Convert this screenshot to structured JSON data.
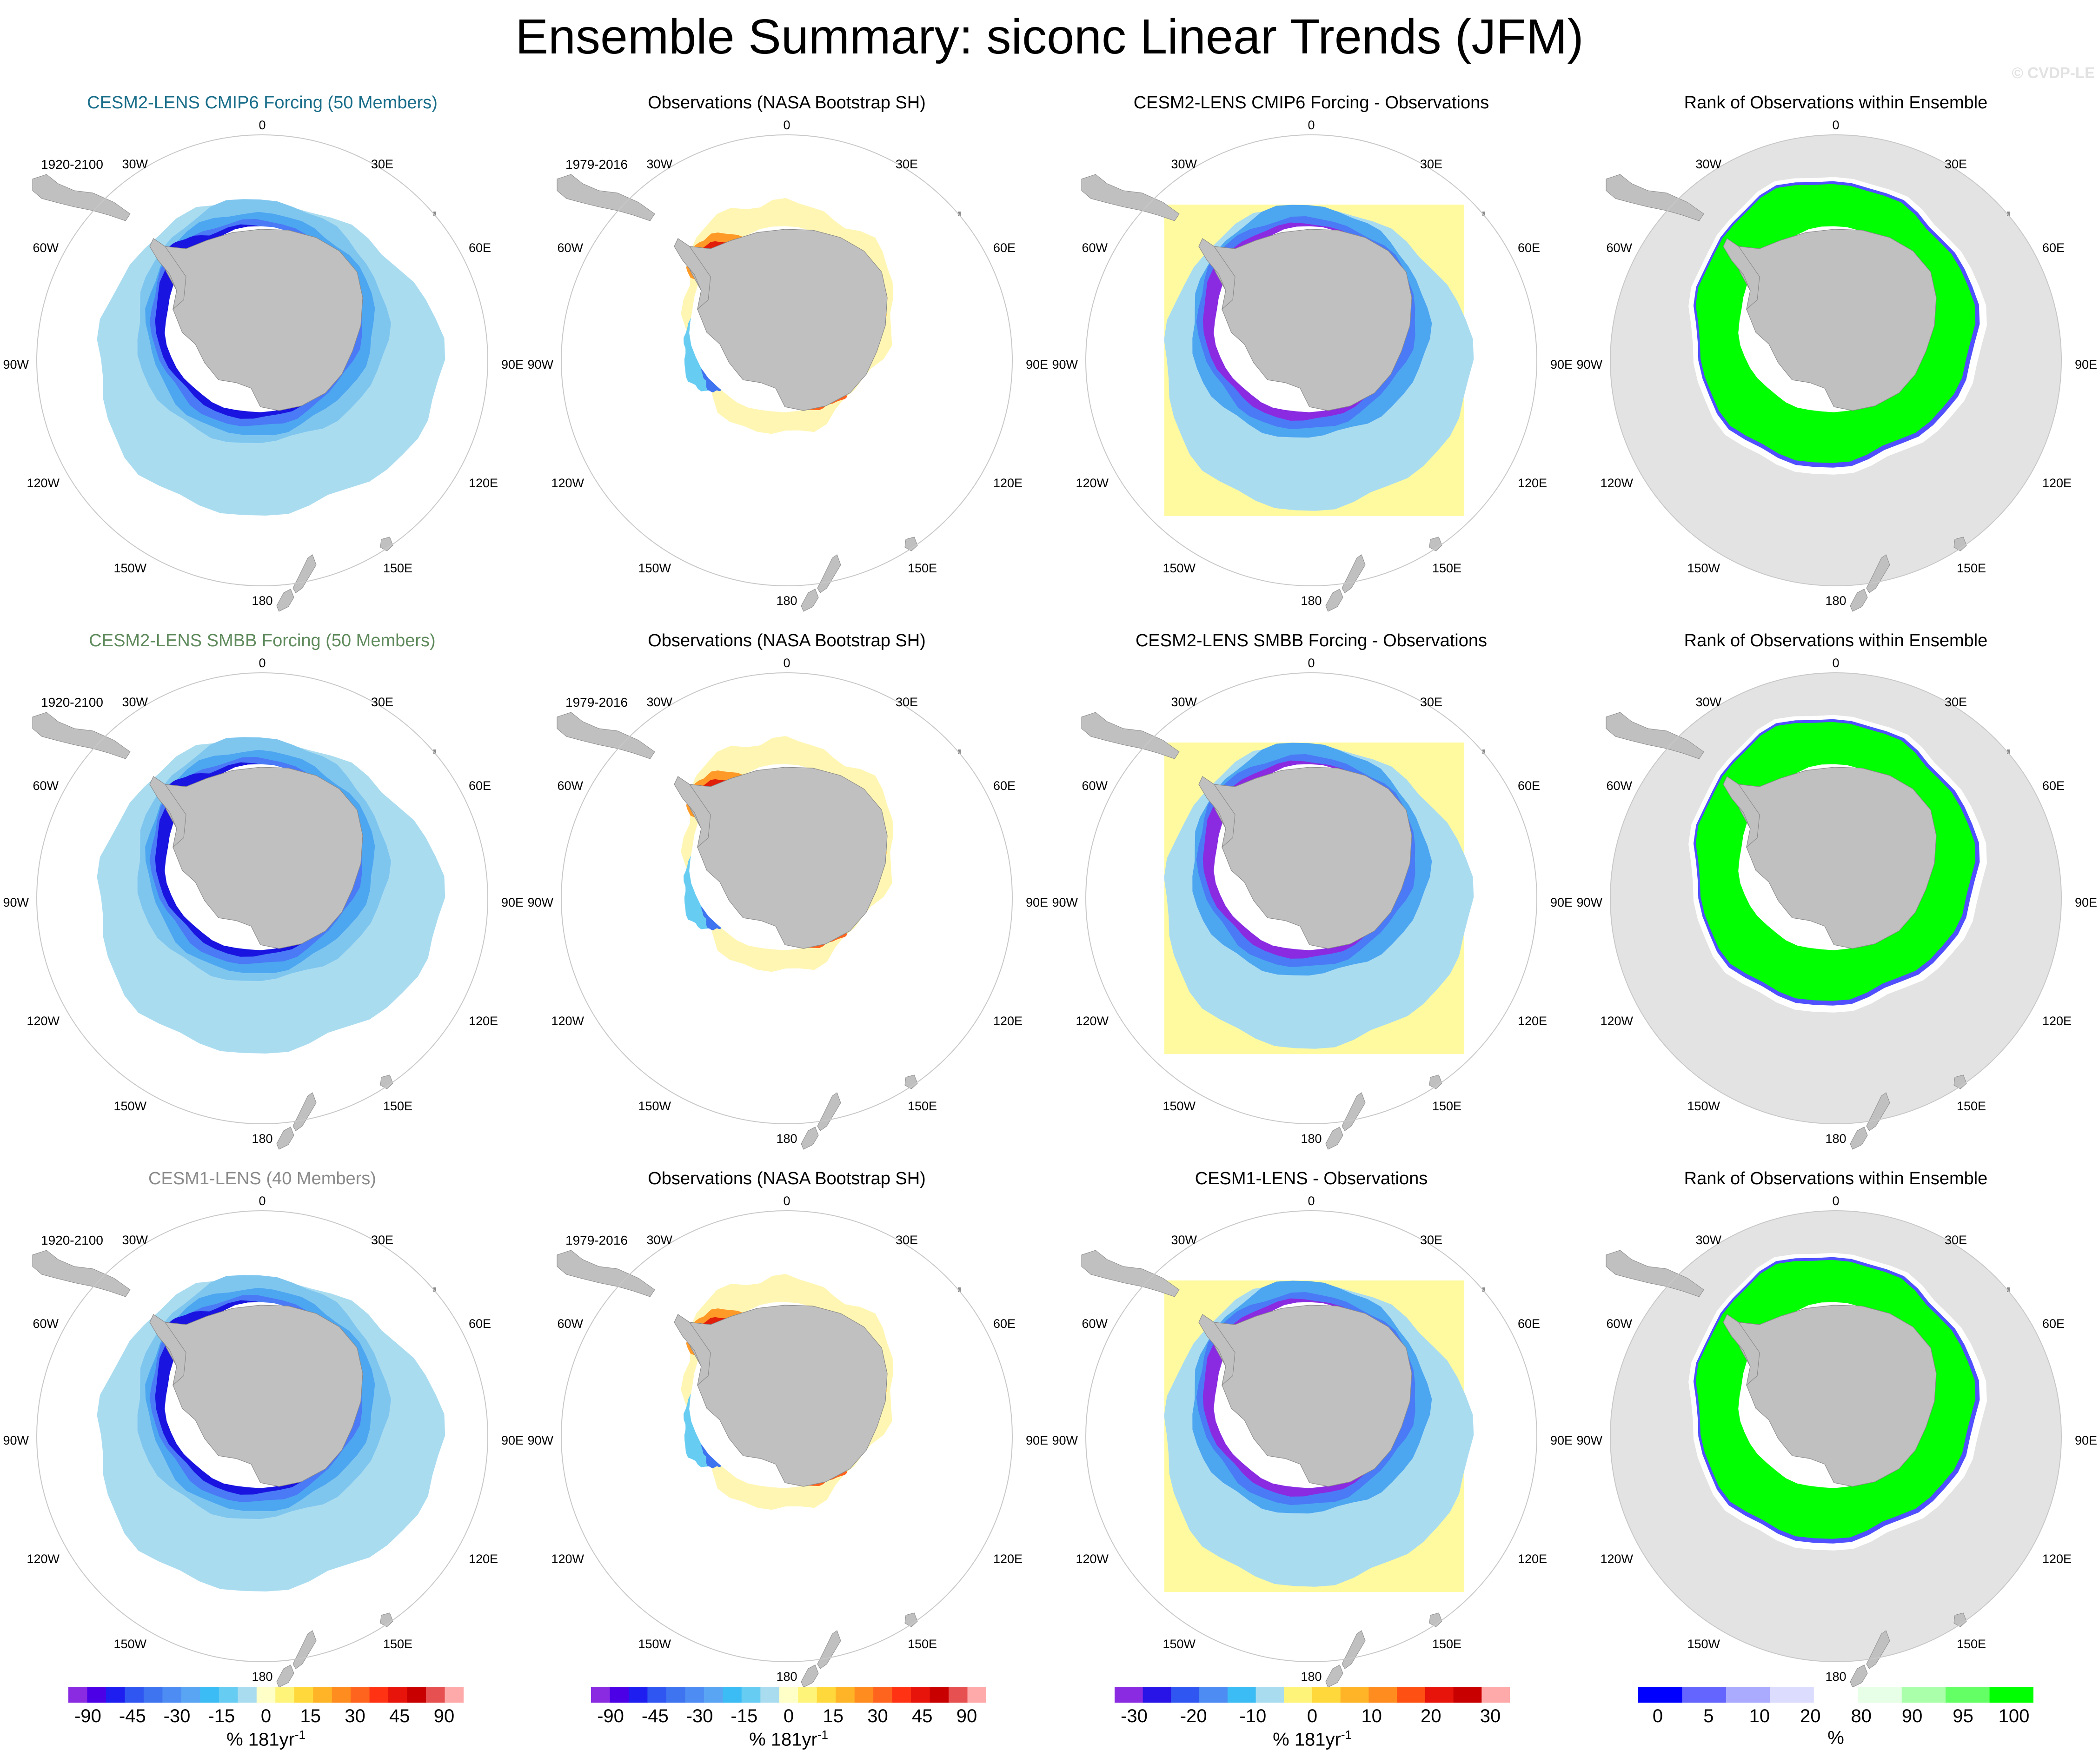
{
  "figure": {
    "title": "Ensemble Summary: siconc Linear Trends (JFM)",
    "watermark": "© CVDP-LE"
  },
  "map_labels": {
    "lon_labels": [
      "0",
      "30E",
      "60E",
      "90E",
      "120E",
      "150E",
      "180",
      "150W",
      "120W",
      "90W",
      "60W",
      "30W"
    ]
  },
  "colors": {
    "land": "#c0c0c0",
    "circle": "#c8c8c8",
    "ocean_background_rank": "#e3e3e3",
    "rank_green": "#00ff00",
    "diff_yellow": "#fffaa0",
    "decline_light": "#aadcf0",
    "decline_mid": "#4a7af5",
    "decline_strong": "#1a14e0",
    "decline_max": "#8a2be2"
  },
  "rows": [
    {
      "model": {
        "title": "CESM2-LENS CMIP6 Forcing (50 Members)",
        "period": "1920-2100"
      },
      "obs": {
        "title": "Observations (NASA Bootstrap SH)",
        "period": "1979-2016"
      },
      "diff": {
        "title": "CESM2-LENS CMIP6 Forcing - Observations"
      },
      "rank": {
        "title": "Rank of Observations within Ensemble"
      }
    },
    {
      "model": {
        "title": "CESM2-LENS SMBB Forcing (50 Members)",
        "period": "1920-2100"
      },
      "obs": {
        "title": "Observations (NASA Bootstrap SH)",
        "period": "1979-2016"
      },
      "diff": {
        "title": "CESM2-LENS SMBB Forcing - Observations"
      },
      "rank": {
        "title": "Rank of Observations within Ensemble"
      }
    },
    {
      "model": {
        "title": "CESM1-LENS (40 Members)",
        "period": "1920-2100"
      },
      "obs": {
        "title": "Observations (NASA Bootstrap SH)",
        "period": "1979-2016"
      },
      "diff": {
        "title": "CESM1-LENS - Observations"
      },
      "rank": {
        "title": "Rank of Observations within Ensemble"
      }
    }
  ],
  "colorbars": {
    "trend": {
      "labels": [
        "-90",
        "-45",
        "-30",
        "-15",
        "0",
        "15",
        "30",
        "45",
        "90"
      ],
      "unit": "% 181yr",
      "unit_exp": "-1",
      "colors": [
        "#8a2be2",
        "#4b00e6",
        "#1e1ef0",
        "#2f56f0",
        "#3f74f0",
        "#4d8cf2",
        "#5aa4f4",
        "#3cbcf4",
        "#67ccf2",
        "#aadcf0",
        "#ffffc8",
        "#fff47a",
        "#ffd83c",
        "#ffb428",
        "#ff8c1e",
        "#ff641e",
        "#ff3214",
        "#e6140a",
        "#c80000",
        "#e65050",
        "#ffaaaa"
      ]
    },
    "diff": {
      "labels": [
        "-30",
        "-20",
        "-10",
        "0",
        "10",
        "20",
        "30"
      ],
      "unit": "% 181yr",
      "unit_exp": "-1",
      "colors": [
        "#8a2be2",
        "#2814e6",
        "#2f56f0",
        "#4d8cf2",
        "#3cbcf4",
        "#aadcf0",
        "#fff47a",
        "#ffd83c",
        "#ffb428",
        "#ff8c1e",
        "#ff5014",
        "#e6140a",
        "#c80000",
        "#ffaaaa"
      ]
    },
    "rank": {
      "labels": [
        "0",
        "5",
        "10",
        "20",
        "80",
        "90",
        "95",
        "100"
      ],
      "unit": "%",
      "colors": [
        "#0000ff",
        "#6464ff",
        "#aaaaff",
        "#dcdcff",
        "#ffffff",
        "#e6ffe6",
        "#aaffaa",
        "#64ff64",
        "#00ff00"
      ]
    }
  }
}
